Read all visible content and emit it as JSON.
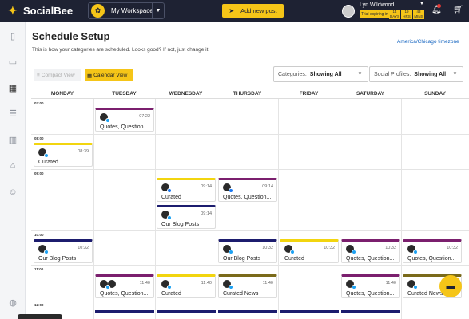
{
  "app": {
    "name": "SocialBee",
    "workspace": "My Workspace",
    "add_post": "Add new post"
  },
  "user": {
    "name": "Lyn Wildwood",
    "trial": "Trial expiring in",
    "days": "14\nDAYS",
    "hrs": "19\nHRS",
    "mins": "43\nMINS"
  },
  "page": {
    "title": "Schedule Setup",
    "subtitle": "This is how your categories are scheduled. Looks good? If not, just change it!",
    "timezone": "America/Chicago timezone"
  },
  "views": {
    "compact": "Compact View",
    "calendar": "Calendar View"
  },
  "filters": {
    "categories_label": "Categories:",
    "categories_value": "Showing All",
    "profiles_label": "Social Profiles:",
    "profiles_value": "Showing All"
  },
  "days": [
    "MONDAY",
    "TUESDAY",
    "WEDNESDAY",
    "THURSDAY",
    "FRIDAY",
    "SATURDAY",
    "SUNDAY"
  ],
  "times": [
    "07:00",
    "08:00",
    "09:00",
    "10:00",
    "11:00",
    "12:00"
  ],
  "colors": {
    "quotes": "#7b1f6e",
    "curated": "#f2d50f",
    "blog": "#1c1c6e",
    "news": "#7a6a1a",
    "accent": "#f5c518",
    "topbar": "#1e2233"
  },
  "posts": [
    {
      "day": 1,
      "slot": "t07",
      "time": "07:22",
      "name": "Quotes, Question...",
      "cat": "quotes",
      "net": "tw"
    },
    {
      "day": 0,
      "slot": "t08",
      "time": "08:39",
      "name": "Curated",
      "cat": "curated",
      "net": "tw"
    },
    {
      "day": 2,
      "slot": "t09a",
      "time": "09:14",
      "name": "Curated",
      "cat": "curated",
      "net": "fb"
    },
    {
      "day": 3,
      "slot": "t09a",
      "time": "09:14",
      "name": "Quotes, Question...",
      "cat": "quotes",
      "net": "fb"
    },
    {
      "day": 2,
      "slot": "t09b",
      "time": "09:14",
      "name": "Our Blog Posts",
      "cat": "blog",
      "net": "tw"
    },
    {
      "day": 0,
      "slot": "t10",
      "time": "10:32",
      "name": "Our Blog Posts",
      "cat": "blog",
      "net": "tw"
    },
    {
      "day": 3,
      "slot": "t10",
      "time": "10:32",
      "name": "Our Blog Posts",
      "cat": "blog",
      "net": "tw"
    },
    {
      "day": 4,
      "slot": "t10",
      "time": "10:32",
      "name": "Curated",
      "cat": "curated",
      "net": "tw"
    },
    {
      "day": 5,
      "slot": "t10",
      "time": "10:32",
      "name": "Quotes, Question...",
      "cat": "quotes",
      "net": "tw"
    },
    {
      "day": 6,
      "slot": "t10",
      "time": "10:32",
      "name": "Quotes, Question...",
      "cat": "quotes",
      "net": "tw"
    },
    {
      "day": 1,
      "slot": "t11",
      "time": "11:40",
      "name": "Quotes, Question...",
      "cat": "quotes",
      "net": "tw",
      "multi": true
    },
    {
      "day": 2,
      "slot": "t11",
      "time": "11:40",
      "name": "Curated",
      "cat": "curated",
      "net": "tw"
    },
    {
      "day": 3,
      "slot": "t11",
      "time": "11:40",
      "name": "Curated News",
      "cat": "news",
      "net": "tw"
    },
    {
      "day": 5,
      "slot": "t11",
      "time": "11:40",
      "name": "Quotes, Question...",
      "cat": "quotes",
      "net": "tw"
    },
    {
      "day": 6,
      "slot": "t11",
      "time": "11:40",
      "name": "Curated News",
      "cat": "news",
      "net": "tw"
    }
  ],
  "icons": {
    "sidebar": [
      "clipboard-icon",
      "folder-icon",
      "calendar-icon",
      "list-icon",
      "chart-icon",
      "bell-icon",
      "team-icon",
      "globe-icon"
    ]
  }
}
